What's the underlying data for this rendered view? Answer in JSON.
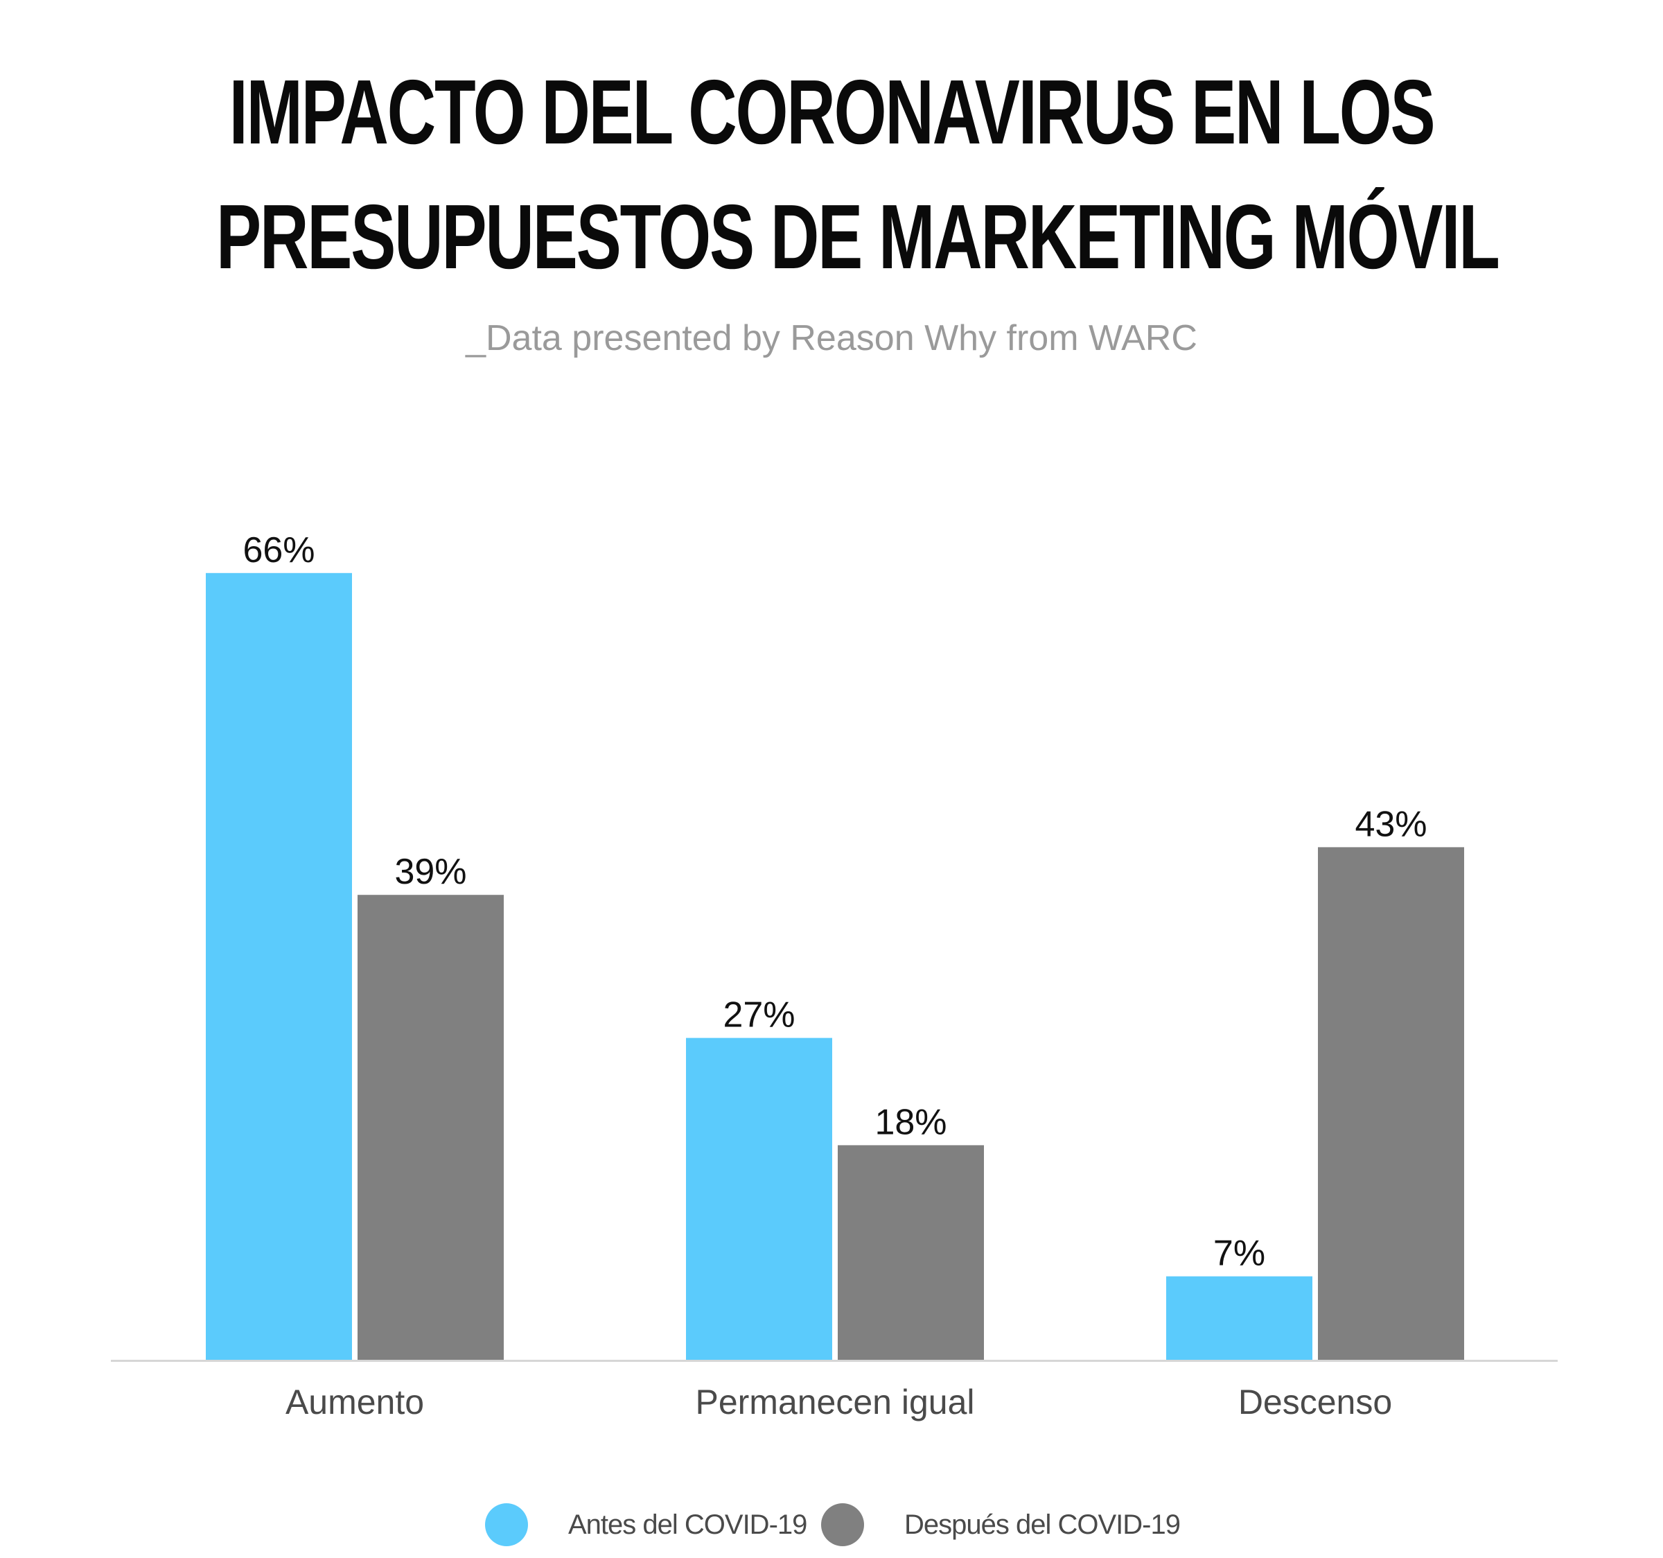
{
  "chart_data": {
    "type": "bar",
    "title_lines": [
      "IMPACTO DEL CORONAVIRUS EN LOS",
      "PRESUPUESTOS DE MARKETING MÓVIL"
    ],
    "subtitle": "_Data presented by Reason Why from WARC",
    "categories": [
      "Aumento",
      "Permanecen igual",
      "Descenso"
    ],
    "series": [
      {
        "name": "Antes del COVID-19",
        "values": [
          66,
          27,
          7
        ],
        "labels": [
          "66%",
          "27%",
          "7%"
        ],
        "color": "#5bcbfc"
      },
      {
        "name": "Después del COVID-19",
        "values": [
          39,
          18,
          43
        ],
        "labels": [
          "39%",
          "18%",
          "43%"
        ],
        "color": "#808080"
      }
    ],
    "ylim": [
      0,
      66
    ],
    "grid": false,
    "legend_position": "bottom"
  },
  "colors": {
    "baseline": "#d6d6d6",
    "category_label": "#4a4a4a",
    "value_label": "#111111"
  }
}
